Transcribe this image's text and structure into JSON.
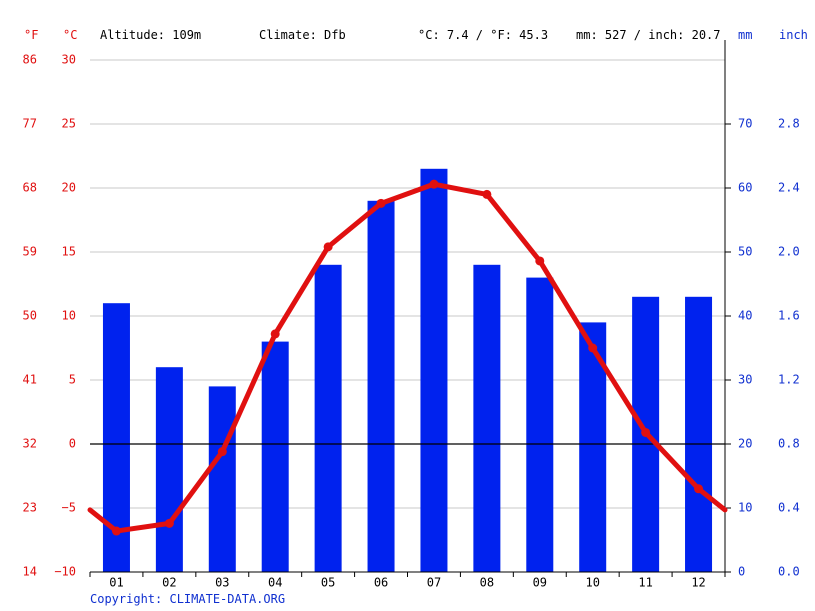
{
  "header": {
    "unit_f": "°F",
    "unit_c": "°C",
    "altitude": "Altitude: 109m",
    "climate": "Climate: Dfb",
    "temp_avg": "°C: 7.4 / °F: 45.3",
    "precip_total": "mm: 527 / inch: 20.7",
    "unit_mm": "mm",
    "unit_inch": "inch"
  },
  "footer": {
    "copyright": "Copyright: CLIMATE-DATA.ORG"
  },
  "chart_data": {
    "type": "bar",
    "categories": [
      "01",
      "02",
      "03",
      "04",
      "05",
      "06",
      "07",
      "08",
      "09",
      "10",
      "11",
      "12"
    ],
    "series": [
      {
        "kind": "bar",
        "axis": "precip_mm",
        "values": [
          42,
          32,
          29,
          36,
          48,
          58,
          63,
          48,
          46,
          39,
          43,
          43
        ]
      },
      {
        "kind": "line",
        "axis": "temp_c",
        "values": [
          -6.8,
          -6.2,
          -0.6,
          8.6,
          15.4,
          18.8,
          20.3,
          19.5,
          14.3,
          7.5,
          0.9,
          -3.5
        ]
      }
    ],
    "temp_c_range": [
      -10,
      30
    ],
    "temp_c_ticks": [
      "30",
      "25",
      "20",
      "15",
      "10",
      "5",
      "0",
      "−5",
      "−10"
    ],
    "temp_f_ticks": [
      "86",
      "77",
      "68",
      "59",
      "50",
      "41",
      "32",
      "23",
      "14"
    ],
    "precip_mm_range": [
      0,
      80
    ],
    "precip_mm_ticks": [
      "70",
      "60",
      "50",
      "40",
      "30",
      "20",
      "10",
      "0"
    ],
    "precip_inch_ticks": [
      "2.8",
      "2.4",
      "2.0",
      "1.6",
      "1.2",
      "0.8",
      "0.4",
      "0.0"
    ],
    "grid": true,
    "colors": {
      "temp": "#e01010",
      "precip": "#0022ee",
      "grid": "#c8c8c8",
      "zero": "#000000",
      "temp_label": "#e01010",
      "precip_label": "#1030d0"
    }
  }
}
